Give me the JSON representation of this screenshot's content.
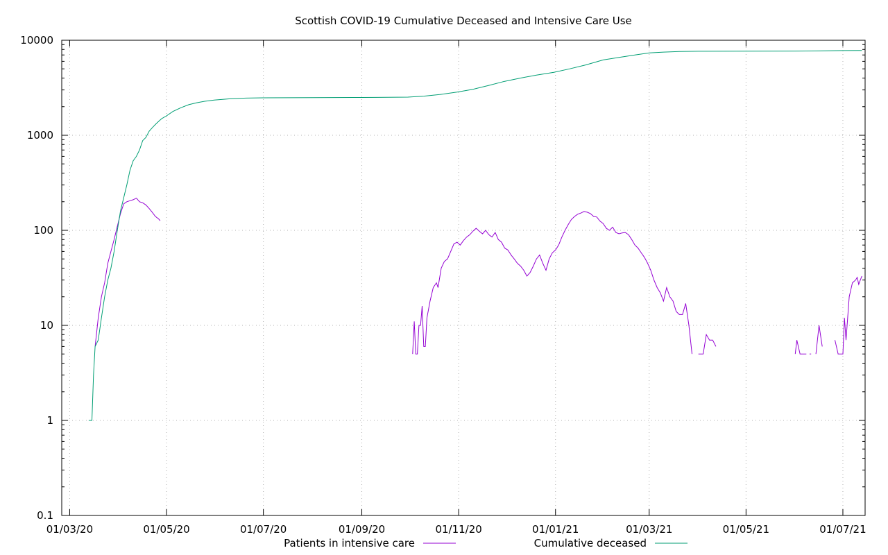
{
  "chart_data": {
    "type": "line",
    "title": "Scottish COVID-19 Cumulative Deceased and Intensive Care Use",
    "xlabel": "",
    "ylabel": "",
    "y_scale": "log",
    "ylim": [
      0.1,
      10000
    ],
    "xlim": [
      "2020-02-25",
      "2021-07-15"
    ],
    "grid": true,
    "legend_position": "bottom",
    "x_ticks": [
      {
        "date": "2020-03-01",
        "label": "01/03/20"
      },
      {
        "date": "2020-05-01",
        "label": "01/05/20"
      },
      {
        "date": "2020-07-01",
        "label": "01/07/20"
      },
      {
        "date": "2020-09-01",
        "label": "01/09/20"
      },
      {
        "date": "2020-11-01",
        "label": "01/11/20"
      },
      {
        "date": "2021-01-01",
        "label": "01/01/21"
      },
      {
        "date": "2021-03-01",
        "label": "01/03/21"
      },
      {
        "date": "2021-05-01",
        "label": "01/05/21"
      },
      {
        "date": "2021-07-01",
        "label": "01/07/21"
      }
    ],
    "y_ticks": [
      {
        "value": 0.1,
        "label": "0.1"
      },
      {
        "value": 1,
        "label": "1"
      },
      {
        "value": 10,
        "label": "10"
      },
      {
        "value": 100,
        "label": "100"
      },
      {
        "value": 1000,
        "label": "1000"
      },
      {
        "value": 10000,
        "label": "10000"
      }
    ],
    "series": [
      {
        "name": "Patients in intensive care",
        "color": "#9400d3",
        "segments": [
          [
            [
              "2020-03-17",
              6
            ],
            [
              "2020-03-19",
              12
            ],
            [
              "2020-03-21",
              20
            ],
            [
              "2020-03-23",
              28
            ],
            [
              "2020-03-25",
              45
            ],
            [
              "2020-03-27",
              60
            ],
            [
              "2020-03-29",
              80
            ],
            [
              "2020-03-31",
              110
            ],
            [
              "2020-04-02",
              150
            ],
            [
              "2020-04-04",
              190
            ],
            [
              "2020-04-06",
              200
            ],
            [
              "2020-04-08",
              205
            ],
            [
              "2020-04-10",
              210
            ],
            [
              "2020-04-12",
              218
            ],
            [
              "2020-04-14",
              200
            ],
            [
              "2020-04-16",
              195
            ],
            [
              "2020-04-18",
              185
            ],
            [
              "2020-04-20",
              170
            ],
            [
              "2020-04-22",
              155
            ],
            [
              "2020-04-24",
              140
            ],
            [
              "2020-04-26",
              132
            ],
            [
              "2020-04-27",
              126
            ]
          ],
          [
            [
              "2020-10-03",
              5
            ],
            [
              "2020-10-04",
              11
            ],
            [
              "2020-10-05",
              5
            ],
            [
              "2020-10-06",
              5
            ],
            [
              "2020-10-07",
              10
            ],
            [
              "2020-10-08",
              10
            ],
            [
              "2020-10-09",
              16
            ],
            [
              "2020-10-10",
              6
            ],
            [
              "2020-10-11",
              6
            ],
            [
              "2020-10-12",
              12
            ],
            [
              "2020-10-14",
              18
            ],
            [
              "2020-10-16",
              25
            ],
            [
              "2020-10-18",
              28
            ],
            [
              "2020-10-19",
              25
            ],
            [
              "2020-10-21",
              40
            ],
            [
              "2020-10-23",
              47
            ],
            [
              "2020-10-25",
              50
            ],
            [
              "2020-10-27",
              60
            ],
            [
              "2020-10-29",
              72
            ],
            [
              "2020-10-31",
              75
            ],
            [
              "2020-11-02",
              70
            ],
            [
              "2020-11-04",
              78
            ],
            [
              "2020-11-06",
              85
            ],
            [
              "2020-11-08",
              90
            ],
            [
              "2020-11-10",
              98
            ],
            [
              "2020-11-12",
              105
            ],
            [
              "2020-11-14",
              98
            ],
            [
              "2020-11-16",
              92
            ],
            [
              "2020-11-18",
              100
            ],
            [
              "2020-11-20",
              90
            ],
            [
              "2020-11-22",
              85
            ],
            [
              "2020-11-24",
              95
            ],
            [
              "2020-11-26",
              80
            ],
            [
              "2020-11-28",
              75
            ],
            [
              "2020-11-30",
              65
            ],
            [
              "2020-12-02",
              62
            ],
            [
              "2020-12-04",
              55
            ],
            [
              "2020-12-06",
              50
            ],
            [
              "2020-12-08",
              45
            ],
            [
              "2020-12-10",
              42
            ],
            [
              "2020-12-12",
              38
            ],
            [
              "2020-12-14",
              33
            ],
            [
              "2020-12-16",
              36
            ],
            [
              "2020-12-18",
              42
            ],
            [
              "2020-12-20",
              50
            ],
            [
              "2020-12-22",
              55
            ],
            [
              "2020-12-24",
              45
            ],
            [
              "2020-12-26",
              38
            ],
            [
              "2020-12-28",
              50
            ],
            [
              "2020-12-30",
              58
            ],
            [
              "2021-01-01",
              62
            ],
            [
              "2021-01-03",
              70
            ],
            [
              "2021-01-05",
              85
            ],
            [
              "2021-01-07",
              100
            ],
            [
              "2021-01-09",
              115
            ],
            [
              "2021-01-11",
              130
            ],
            [
              "2021-01-13",
              140
            ],
            [
              "2021-01-15",
              148
            ],
            [
              "2021-01-17",
              152
            ],
            [
              "2021-01-19",
              158
            ],
            [
              "2021-01-21",
              155
            ],
            [
              "2021-01-23",
              150
            ],
            [
              "2021-01-25",
              140
            ],
            [
              "2021-01-27",
              138
            ],
            [
              "2021-01-29",
              125
            ],
            [
              "2021-01-31",
              118
            ],
            [
              "2021-02-02",
              105
            ],
            [
              "2021-02-04",
              100
            ],
            [
              "2021-02-06",
              108
            ],
            [
              "2021-02-08",
              95
            ],
            [
              "2021-02-10",
              92
            ],
            [
              "2021-02-12",
              94
            ],
            [
              "2021-02-14",
              95
            ],
            [
              "2021-02-16",
              90
            ],
            [
              "2021-02-18",
              80
            ],
            [
              "2021-02-20",
              70
            ],
            [
              "2021-02-22",
              65
            ],
            [
              "2021-02-24",
              58
            ],
            [
              "2021-02-26",
              52
            ],
            [
              "2021-02-28",
              45
            ],
            [
              "2021-03-02",
              38
            ],
            [
              "2021-03-04",
              30
            ],
            [
              "2021-03-06",
              25
            ],
            [
              "2021-03-08",
              22
            ],
            [
              "2021-03-10",
              18
            ],
            [
              "2021-03-12",
              25
            ],
            [
              "2021-03-14",
              20
            ],
            [
              "2021-03-16",
              18
            ],
            [
              "2021-03-18",
              14
            ],
            [
              "2021-03-20",
              13
            ],
            [
              "2021-03-22",
              13
            ],
            [
              "2021-03-24",
              17
            ],
            [
              "2021-03-26",
              10
            ],
            [
              "2021-03-28",
              5
            ]
          ],
          [
            [
              "2021-04-01",
              5
            ],
            [
              "2021-04-04",
              5
            ],
            [
              "2021-04-06",
              8
            ],
            [
              "2021-04-08",
              7
            ],
            [
              "2021-04-10",
              7
            ],
            [
              "2021-04-12",
              6
            ]
          ],
          [
            [
              "2021-06-01",
              5
            ],
            [
              "2021-06-02",
              7
            ],
            [
              "2021-06-04",
              5
            ],
            [
              "2021-06-06",
              5
            ],
            [
              "2021-06-08",
              5
            ]
          ],
          [
            [
              "2021-06-10",
              5
            ],
            [
              "2021-06-11",
              5
            ]
          ],
          [
            [
              "2021-06-14",
              5
            ],
            [
              "2021-06-16",
              10
            ],
            [
              "2021-06-18",
              6
            ]
          ],
          [
            [
              "2021-06-26",
              7
            ],
            [
              "2021-06-28",
              5
            ],
            [
              "2021-06-30",
              5
            ],
            [
              "2021-07-01",
              5
            ],
            [
              "2021-07-02",
              12
            ],
            [
              "2021-07-03",
              7
            ],
            [
              "2021-07-05",
              20
            ],
            [
              "2021-07-07",
              28
            ],
            [
              "2021-07-09",
              30
            ],
            [
              "2021-07-10",
              32
            ],
            [
              "2021-07-11",
              27
            ],
            [
              "2021-07-12",
              30
            ],
            [
              "2021-07-13",
              33
            ]
          ]
        ]
      },
      {
        "name": "Cumulative deceased",
        "color": "#009e73",
        "segments": [
          [
            [
              "2020-03-13",
              1
            ],
            [
              "2020-03-15",
              1
            ],
            [
              "2020-03-16",
              3
            ],
            [
              "2020-03-17",
              6
            ],
            [
              "2020-03-19",
              7
            ],
            [
              "2020-03-21",
              12
            ],
            [
              "2020-03-23",
              20
            ],
            [
              "2020-03-25",
              30
            ],
            [
              "2020-03-27",
              40
            ],
            [
              "2020-03-29",
              60
            ],
            [
              "2020-03-31",
              100
            ],
            [
              "2020-04-02",
              160
            ],
            [
              "2020-04-04",
              220
            ],
            [
              "2020-04-06",
              300
            ],
            [
              "2020-04-08",
              430
            ],
            [
              "2020-04-10",
              540
            ],
            [
              "2020-04-12",
              600
            ],
            [
              "2020-04-14",
              700
            ],
            [
              "2020-04-16",
              880
            ],
            [
              "2020-04-18",
              950
            ],
            [
              "2020-04-20",
              1100
            ],
            [
              "2020-04-22",
              1200
            ],
            [
              "2020-04-24",
              1300
            ],
            [
              "2020-04-26",
              1400
            ],
            [
              "2020-04-28",
              1500
            ],
            [
              "2020-05-01",
              1600
            ],
            [
              "2020-05-05",
              1780
            ],
            [
              "2020-05-10",
              1950
            ],
            [
              "2020-05-15",
              2100
            ],
            [
              "2020-05-20",
              2200
            ],
            [
              "2020-05-25",
              2280
            ],
            [
              "2020-05-31",
              2350
            ],
            [
              "2020-06-10",
              2420
            ],
            [
              "2020-06-20",
              2460
            ],
            [
              "2020-07-01",
              2480
            ],
            [
              "2020-08-01",
              2490
            ],
            [
              "2020-09-01",
              2500
            ],
            [
              "2020-09-10",
              2505
            ],
            [
              "2020-09-30",
              2520
            ],
            [
              "2020-10-10",
              2580
            ],
            [
              "2020-10-20",
              2680
            ],
            [
              "2020-10-31",
              2850
            ],
            [
              "2020-11-10",
              3050
            ],
            [
              "2020-11-20",
              3350
            ],
            [
              "2020-11-30",
              3700
            ],
            [
              "2020-12-10",
              4000
            ],
            [
              "2020-12-20",
              4300
            ],
            [
              "2020-12-31",
              4600
            ],
            [
              "2021-01-10",
              5000
            ],
            [
              "2021-01-20",
              5500
            ],
            [
              "2021-01-31",
              6200
            ],
            [
              "2021-02-10",
              6600
            ],
            [
              "2021-02-20",
              7000
            ],
            [
              "2021-03-01",
              7350
            ],
            [
              "2021-03-10",
              7500
            ],
            [
              "2021-03-20",
              7600
            ],
            [
              "2021-04-01",
              7650
            ],
            [
              "2021-05-01",
              7680
            ],
            [
              "2021-06-01",
              7700
            ],
            [
              "2021-06-15",
              7720
            ],
            [
              "2021-07-01",
              7780
            ],
            [
              "2021-07-13",
              7800
            ]
          ]
        ]
      }
    ]
  }
}
